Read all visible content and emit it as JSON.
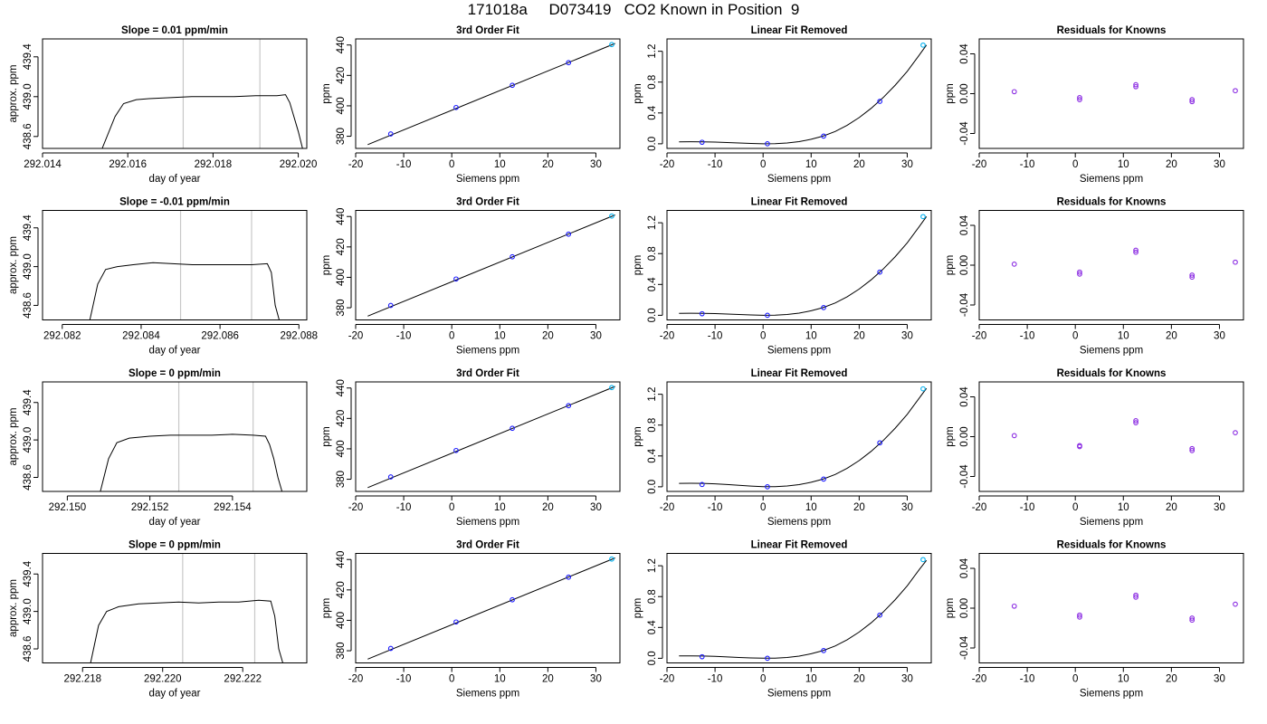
{
  "page_title": "171018a     D073419   CO2 Known in Position  9",
  "colors": {
    "axis": "#000000",
    "curve": "#000000",
    "window_line": "#c8c8c8",
    "point_blue": "#1a1aff",
    "point_cyan": "#00b0f0",
    "point_purple": "#8a2be2"
  },
  "chart_data": [
    {
      "id": "r1-trace",
      "type": "line",
      "title": "Slope =  0.01  ppm/min",
      "xlabel": "day of year",
      "ylabel": "approx. ppm",
      "xlim": [
        292.014,
        292.0202
      ],
      "ylim": [
        438.48,
        439.58
      ],
      "xticks": [
        292.014,
        292.016,
        292.018,
        292.02
      ],
      "xtick_labels": [
        "292.014",
        "292.016",
        "292.018",
        "292.020"
      ],
      "yticks": [
        438.6,
        439.0,
        439.4
      ],
      "ytick_labels": [
        "438.6",
        "439.0",
        "439.4"
      ],
      "window": [
        292.0173,
        292.0191
      ],
      "x": [
        292.0154,
        292.0157,
        292.0159,
        292.0162,
        292.0165,
        292.017,
        292.0175,
        292.018,
        292.0185,
        292.019,
        292.0195,
        292.0197,
        292.0198,
        292.02,
        292.0201
      ],
      "y": [
        438.48,
        438.8,
        438.93,
        438.97,
        438.98,
        438.99,
        439.0,
        439.0,
        439.0,
        439.01,
        439.01,
        439.02,
        438.94,
        438.65,
        438.48
      ]
    },
    {
      "id": "r1-fit",
      "type": "scatter",
      "title": "3rd Order Fit",
      "xlabel": "Siemens ppm",
      "ylabel": "ppm",
      "xlim": [
        -20,
        35
      ],
      "ylim": [
        372,
        444
      ],
      "xticks": [
        -20,
        -10,
        0,
        10,
        20,
        30
      ],
      "xtick_labels": [
        "-20",
        "-10",
        "0",
        "10",
        "20",
        "30"
      ],
      "yticks": [
        380,
        400,
        420,
        440
      ],
      "ytick_labels": [
        "380",
        "400",
        "420",
        "440"
      ],
      "x": [
        -12.7,
        0.9,
        12.6,
        24.3,
        33.3
      ],
      "y": [
        381.5,
        398.9,
        413.5,
        428.4,
        440.3
      ],
      "fit_x": [
        -17.5,
        34
      ],
      "fit_y": [
        374.5,
        441
      ]
    },
    {
      "id": "r1-lin",
      "type": "scatter",
      "title": "Linear Fit Removed",
      "xlabel": "Siemens ppm",
      "ylabel": "ppm",
      "xlim": [
        -20,
        35
      ],
      "ylim": [
        -0.06,
        1.36
      ],
      "xticks": [
        -20,
        -10,
        0,
        10,
        20,
        30
      ],
      "xtick_labels": [
        "-20",
        "-10",
        "0",
        "10",
        "20",
        "30"
      ],
      "yticks": [
        0.0,
        0.4,
        0.8,
        1.2
      ],
      "ytick_labels": [
        "0.0",
        "0.4",
        "0.8",
        "1.2"
      ],
      "x": [
        -12.7,
        0.9,
        12.6,
        24.3,
        33.3
      ],
      "y": [
        0.02,
        0.0,
        0.1,
        0.55,
        1.28
      ],
      "fit_x": [
        -17.5,
        -15,
        -12.5,
        -10,
        -7.5,
        -5,
        -2.5,
        0,
        2.5,
        5,
        7.5,
        10,
        12.5,
        15,
        17.5,
        20,
        22.5,
        25,
        27.5,
        30,
        32.5,
        34
      ],
      "fit_y": [
        0.025,
        0.027,
        0.026,
        0.022,
        0.016,
        0.01,
        0.004,
        0.0,
        0.002,
        0.01,
        0.028,
        0.058,
        0.1,
        0.16,
        0.24,
        0.34,
        0.46,
        0.6,
        0.76,
        0.94,
        1.15,
        1.28
      ]
    },
    {
      "id": "r1-res",
      "type": "scatter",
      "title": "Residuals for Knowns",
      "xlabel": "Siemens ppm",
      "ylabel": "ppm",
      "xlim": [
        -20,
        35
      ],
      "ylim": [
        -0.055,
        0.055
      ],
      "xticks": [
        -20,
        -10,
        0,
        10,
        20,
        30
      ],
      "xtick_labels": [
        "-20",
        "-10",
        "0",
        "10",
        "20",
        "30"
      ],
      "yticks": [
        -0.04,
        0.0,
        0.04
      ],
      "ytick_labels": [
        "-0.04",
        "0.00",
        "0.04"
      ],
      "x": [
        -12.7,
        0.9,
        0.9,
        12.6,
        12.6,
        24.3,
        24.3,
        33.3
      ],
      "y": [
        0.002,
        -0.004,
        -0.006,
        0.007,
        0.009,
        -0.006,
        -0.008,
        0.003
      ]
    },
    {
      "id": "r2-trace",
      "type": "line",
      "title": "Slope =  -0.01  ppm/min",
      "xlabel": "day of year",
      "ylabel": "approx. ppm",
      "xlim": [
        292.0815,
        292.0882
      ],
      "ylim": [
        438.45,
        439.58
      ],
      "xticks": [
        292.082,
        292.084,
        292.086,
        292.088
      ],
      "xtick_labels": [
        "292.082",
        "292.084",
        "292.086",
        "292.088"
      ],
      "yticks": [
        438.6,
        439.0,
        439.4
      ],
      "ytick_labels": [
        "438.6",
        "439.0",
        "439.4"
      ],
      "window": [
        292.085,
        292.0868
      ],
      "x": [
        292.0827,
        292.0829,
        292.0831,
        292.0834,
        292.0838,
        292.0843,
        292.0848,
        292.0853,
        292.0858,
        292.0863,
        292.0868,
        292.0872,
        292.0873,
        292.0874,
        292.0875
      ],
      "y": [
        438.45,
        438.82,
        438.97,
        439.0,
        439.02,
        439.04,
        439.03,
        439.02,
        439.02,
        439.02,
        439.02,
        439.03,
        438.94,
        438.6,
        438.45
      ]
    },
    {
      "id": "r2-fit",
      "type": "scatter",
      "title": "3rd Order Fit",
      "xlabel": "Siemens ppm",
      "ylabel": "ppm",
      "xlim": [
        -20,
        35
      ],
      "ylim": [
        372,
        444
      ],
      "xticks": [
        -20,
        -10,
        0,
        10,
        20,
        30
      ],
      "xtick_labels": [
        "-20",
        "-10",
        "0",
        "10",
        "20",
        "30"
      ],
      "yticks": [
        380,
        400,
        420,
        440
      ],
      "ytick_labels": [
        "380",
        "400",
        "420",
        "440"
      ],
      "x": [
        -12.7,
        0.9,
        12.6,
        24.3,
        33.3
      ],
      "y": [
        381.5,
        398.9,
        413.5,
        428.4,
        440.3
      ],
      "fit_x": [
        -17.5,
        34
      ],
      "fit_y": [
        374.5,
        441
      ]
    },
    {
      "id": "r2-lin",
      "type": "scatter",
      "title": "Linear Fit Removed",
      "xlabel": "Siemens ppm",
      "ylabel": "ppm",
      "xlim": [
        -20,
        35
      ],
      "ylim": [
        -0.06,
        1.36
      ],
      "xticks": [
        -20,
        -10,
        0,
        10,
        20,
        30
      ],
      "xtick_labels": [
        "-20",
        "-10",
        "0",
        "10",
        "20",
        "30"
      ],
      "yticks": [
        0.0,
        0.4,
        0.8,
        1.2
      ],
      "ytick_labels": [
        "0.0",
        "0.4",
        "0.8",
        "1.2"
      ],
      "x": [
        -12.7,
        0.9,
        12.6,
        24.3,
        33.3
      ],
      "y": [
        0.02,
        0.0,
        0.1,
        0.56,
        1.28
      ],
      "fit_x": [
        -17.5,
        -15,
        -12.5,
        -10,
        -7.5,
        -5,
        -2.5,
        0,
        2.5,
        5,
        7.5,
        10,
        12.5,
        15,
        17.5,
        20,
        22.5,
        25,
        27.5,
        30,
        32.5,
        34
      ],
      "fit_y": [
        0.025,
        0.027,
        0.026,
        0.022,
        0.016,
        0.01,
        0.004,
        0.0,
        0.002,
        0.01,
        0.028,
        0.058,
        0.1,
        0.16,
        0.24,
        0.34,
        0.46,
        0.6,
        0.76,
        0.94,
        1.15,
        1.28
      ]
    },
    {
      "id": "r2-res",
      "type": "scatter",
      "title": "Residuals for Knowns",
      "xlabel": "Siemens ppm",
      "ylabel": "ppm",
      "xlim": [
        -20,
        35
      ],
      "ylim": [
        -0.055,
        0.055
      ],
      "xticks": [
        -20,
        -10,
        0,
        10,
        20,
        30
      ],
      "xtick_labels": [
        "-20",
        "-10",
        "0",
        "10",
        "20",
        "30"
      ],
      "yticks": [
        -0.04,
        0.0,
        0.04
      ],
      "ytick_labels": [
        "-0.04",
        "0.00",
        "0.04"
      ],
      "x": [
        -12.7,
        0.9,
        0.9,
        12.6,
        12.6,
        24.3,
        24.3,
        33.3
      ],
      "y": [
        0.001,
        -0.007,
        -0.009,
        0.013,
        0.015,
        -0.01,
        -0.012,
        0.003
      ]
    },
    {
      "id": "r3-trace",
      "type": "line",
      "title": "Slope =  0  ppm/min",
      "xlabel": "day of year",
      "ylabel": "approx. ppm",
      "xlim": [
        292.1494,
        292.1558
      ],
      "ylim": [
        438.45,
        439.62
      ],
      "xticks": [
        292.15,
        292.152,
        292.154
      ],
      "xtick_labels": [
        "292.150",
        "292.152",
        "292.154"
      ],
      "yticks": [
        438.6,
        439.0,
        439.4
      ],
      "ytick_labels": [
        "438.6",
        "439.0",
        "439.4"
      ],
      "window": [
        292.1527,
        292.1545
      ],
      "x": [
        292.1508,
        292.151,
        292.1512,
        292.1515,
        292.152,
        292.1525,
        292.153,
        292.1535,
        292.154,
        292.1545,
        292.1548,
        292.1549,
        292.155,
        292.1551,
        292.1552
      ],
      "y": [
        438.45,
        438.8,
        438.97,
        439.02,
        439.04,
        439.05,
        439.05,
        439.05,
        439.06,
        439.05,
        439.04,
        438.95,
        438.8,
        438.6,
        438.45
      ]
    },
    {
      "id": "r3-fit",
      "type": "scatter",
      "title": "3rd Order Fit",
      "xlabel": "Siemens ppm",
      "ylabel": "ppm",
      "xlim": [
        -20,
        35
      ],
      "ylim": [
        372,
        444
      ],
      "xticks": [
        -20,
        -10,
        0,
        10,
        20,
        30
      ],
      "xtick_labels": [
        "-20",
        "-10",
        "0",
        "10",
        "20",
        "30"
      ],
      "yticks": [
        380,
        400,
        420,
        440
      ],
      "ytick_labels": [
        "380",
        "400",
        "420",
        "440"
      ],
      "x": [
        -12.7,
        0.9,
        12.6,
        24.3,
        33.3
      ],
      "y": [
        381.5,
        398.9,
        413.5,
        428.4,
        440.3
      ],
      "fit_x": [
        -17.5,
        34
      ],
      "fit_y": [
        374.5,
        441
      ]
    },
    {
      "id": "r3-lin",
      "type": "scatter",
      "title": "Linear Fit Removed",
      "xlabel": "Siemens ppm",
      "ylabel": "ppm",
      "xlim": [
        -20,
        35
      ],
      "ylim": [
        -0.06,
        1.36
      ],
      "xticks": [
        -20,
        -10,
        0,
        10,
        20,
        30
      ],
      "xtick_labels": [
        "-20",
        "-10",
        "0",
        "10",
        "20",
        "30"
      ],
      "yticks": [
        0.0,
        0.4,
        0.8,
        1.2
      ],
      "ytick_labels": [
        "0.0",
        "0.4",
        "0.8",
        "1.2"
      ],
      "x": [
        -12.7,
        0.9,
        12.6,
        24.3,
        33.3
      ],
      "y": [
        0.03,
        0.0,
        0.1,
        0.57,
        1.27
      ],
      "fit_x": [
        -17.5,
        -15,
        -12.5,
        -10,
        -7.5,
        -5,
        -2.5,
        0,
        2.5,
        5,
        7.5,
        10,
        12.5,
        15,
        17.5,
        20,
        22.5,
        25,
        27.5,
        30,
        32.5,
        34
      ],
      "fit_y": [
        0.045,
        0.046,
        0.044,
        0.038,
        0.029,
        0.019,
        0.009,
        0.002,
        0.002,
        0.01,
        0.028,
        0.058,
        0.1,
        0.16,
        0.24,
        0.34,
        0.46,
        0.6,
        0.76,
        0.94,
        1.15,
        1.275
      ]
    },
    {
      "id": "r3-res",
      "type": "scatter",
      "title": "Residuals for Knowns",
      "xlabel": "Siemens ppm",
      "ylabel": "ppm",
      "xlim": [
        -20,
        35
      ],
      "ylim": [
        -0.055,
        0.055
      ],
      "xticks": [
        -20,
        -10,
        0,
        10,
        20,
        30
      ],
      "xtick_labels": [
        "-20",
        "-10",
        "0",
        "10",
        "20",
        "30"
      ],
      "yticks": [
        -0.04,
        0.0,
        0.04
      ],
      "ytick_labels": [
        "-0.04",
        "0.00",
        "0.04"
      ],
      "x": [
        -12.7,
        0.9,
        0.9,
        12.6,
        12.6,
        24.3,
        24.3,
        33.3
      ],
      "y": [
        0.001,
        -0.009,
        -0.01,
        0.014,
        0.016,
        -0.012,
        -0.014,
        0.004
      ]
    },
    {
      "id": "r4-trace",
      "type": "line",
      "title": "Slope =  0  ppm/min",
      "xlabel": "day of year",
      "ylabel": "approx. ppm",
      "xlim": [
        292.217,
        292.2236
      ],
      "ylim": [
        438.45,
        439.62
      ],
      "xticks": [
        292.218,
        292.22,
        292.222
      ],
      "xtick_labels": [
        "292.218",
        "292.220",
        "292.222"
      ],
      "yticks": [
        438.6,
        439.0,
        439.4
      ],
      "ytick_labels": [
        "438.6",
        "439.0",
        "439.4"
      ],
      "window": [
        292.2205,
        292.2223
      ],
      "x": [
        292.2182,
        292.2184,
        292.2186,
        292.2189,
        292.2194,
        292.2199,
        292.2204,
        292.2209,
        292.2214,
        292.2219,
        292.2224,
        292.2227,
        292.2228,
        292.2229,
        292.223
      ],
      "y": [
        438.45,
        438.85,
        439.0,
        439.05,
        439.08,
        439.09,
        439.1,
        439.09,
        439.1,
        439.1,
        439.12,
        439.11,
        438.95,
        438.6,
        438.45
      ]
    },
    {
      "id": "r4-fit",
      "type": "scatter",
      "title": "3rd Order Fit",
      "xlabel": "Siemens ppm",
      "ylabel": "ppm",
      "xlim": [
        -20,
        35
      ],
      "ylim": [
        372,
        444
      ],
      "xticks": [
        -20,
        -10,
        0,
        10,
        20,
        30
      ],
      "xtick_labels": [
        "-20",
        "-10",
        "0",
        "10",
        "20",
        "30"
      ],
      "yticks": [
        380,
        400,
        420,
        440
      ],
      "ytick_labels": [
        "380",
        "400",
        "420",
        "440"
      ],
      "x": [
        -12.7,
        0.9,
        12.6,
        24.3,
        33.3
      ],
      "y": [
        381.5,
        398.9,
        413.5,
        428.4,
        440.3
      ],
      "fit_x": [
        -17.5,
        34
      ],
      "fit_y": [
        374.5,
        441
      ]
    },
    {
      "id": "r4-lin",
      "type": "scatter",
      "title": "Linear Fit Removed",
      "xlabel": "Siemens ppm",
      "ylabel": "ppm",
      "xlim": [
        -20,
        35
      ],
      "ylim": [
        -0.06,
        1.36
      ],
      "xticks": [
        -20,
        -10,
        0,
        10,
        20,
        30
      ],
      "xtick_labels": [
        "-20",
        "-10",
        "0",
        "10",
        "20",
        "30"
      ],
      "yticks": [
        0.0,
        0.4,
        0.8,
        1.2
      ],
      "ytick_labels": [
        "0.0",
        "0.4",
        "0.8",
        "1.2"
      ],
      "x": [
        -12.7,
        0.9,
        12.6,
        24.3,
        33.3
      ],
      "y": [
        0.02,
        0.0,
        0.1,
        0.56,
        1.28
      ],
      "fit_x": [
        -17.5,
        -15,
        -12.5,
        -10,
        -7.5,
        -5,
        -2.5,
        0,
        2.5,
        5,
        7.5,
        10,
        12.5,
        15,
        17.5,
        20,
        22.5,
        25,
        27.5,
        30,
        32.5,
        34
      ],
      "fit_y": [
        0.03,
        0.031,
        0.029,
        0.025,
        0.018,
        0.011,
        0.005,
        0.001,
        0.002,
        0.01,
        0.028,
        0.058,
        0.1,
        0.16,
        0.24,
        0.34,
        0.46,
        0.6,
        0.76,
        0.94,
        1.15,
        1.27
      ]
    },
    {
      "id": "r4-res",
      "type": "scatter",
      "title": "Residuals for Knowns",
      "xlabel": "Siemens ppm",
      "ylabel": "ppm",
      "xlim": [
        -20,
        35
      ],
      "ylim": [
        -0.055,
        0.055
      ],
      "xticks": [
        -20,
        -10,
        0,
        10,
        20,
        30
      ],
      "xtick_labels": [
        "-20",
        "-10",
        "0",
        "10",
        "20",
        "30"
      ],
      "yticks": [
        -0.04,
        0.0,
        0.04
      ],
      "ytick_labels": [
        "-0.04",
        "0.00",
        "0.04"
      ],
      "x": [
        -12.7,
        0.9,
        0.9,
        12.6,
        12.6,
        24.3,
        24.3,
        33.3
      ],
      "y": [
        0.002,
        -0.007,
        -0.009,
        0.011,
        0.013,
        -0.01,
        -0.012,
        0.004
      ]
    }
  ]
}
